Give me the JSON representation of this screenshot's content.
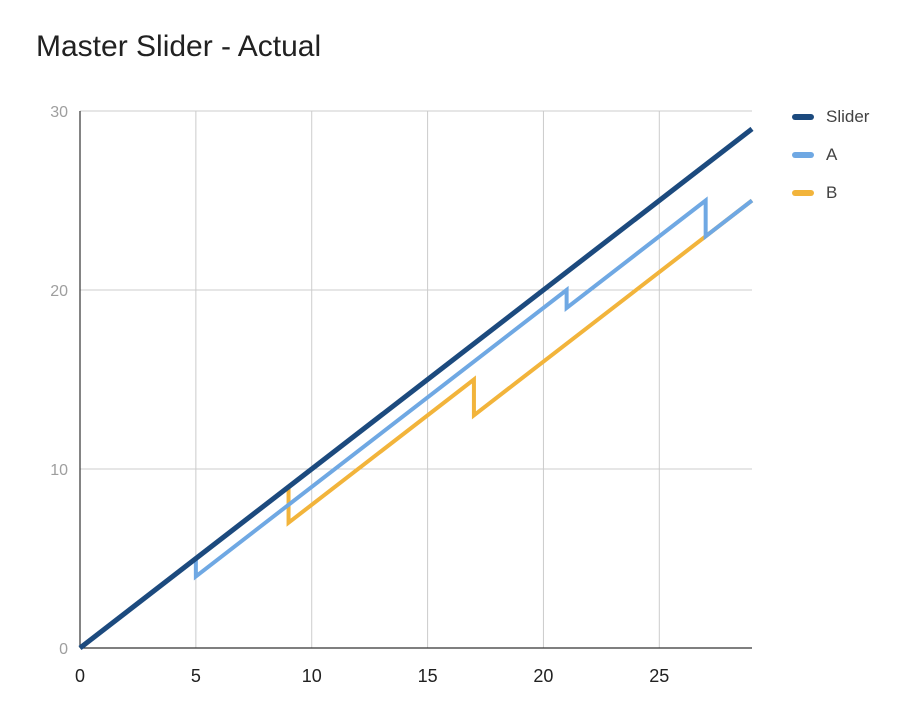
{
  "chart_data": {
    "type": "line",
    "title": "Master Slider - Actual",
    "xlabel": "",
    "ylabel": "",
    "xlim": [
      0,
      29
    ],
    "ylim": [
      0,
      30
    ],
    "x_ticks": [
      0,
      5,
      10,
      15,
      20,
      25
    ],
    "y_ticks": [
      0,
      10,
      20,
      30
    ],
    "grid": true,
    "legend_position": "right",
    "series": [
      {
        "name": "Slider",
        "color": "#1c4a7e",
        "points": [
          [
            0,
            0
          ],
          [
            29,
            29
          ]
        ]
      },
      {
        "name": "A",
        "color": "#6fa8e3",
        "points": [
          [
            0,
            0
          ],
          [
            5,
            5
          ],
          [
            5,
            4
          ],
          [
            21,
            20
          ],
          [
            21,
            19
          ],
          [
            27,
            25
          ],
          [
            27,
            23
          ],
          [
            29,
            25
          ]
        ]
      },
      {
        "name": "B",
        "color": "#f2b43b",
        "points": [
          [
            0,
            0
          ],
          [
            9,
            9
          ],
          [
            9,
            7
          ],
          [
            17,
            15
          ],
          [
            17,
            13
          ],
          [
            29,
            25
          ]
        ]
      }
    ]
  }
}
